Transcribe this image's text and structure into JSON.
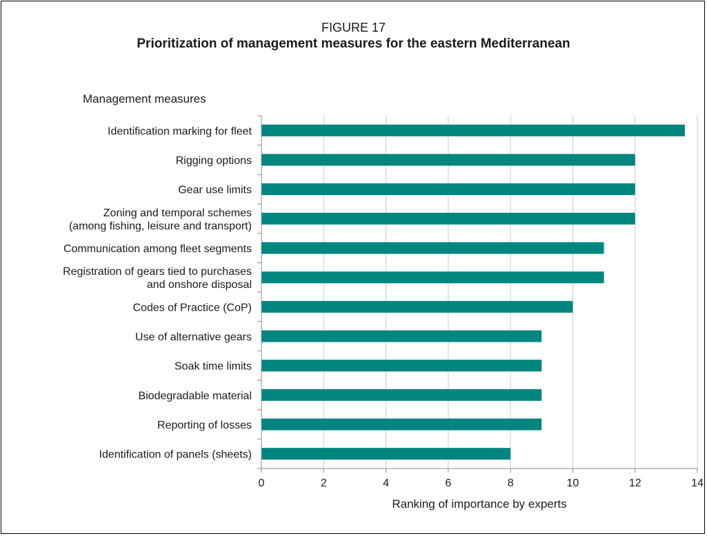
{
  "figure": {
    "label": "FIGURE 17",
    "title": "Prioritization of management measures for the eastern Mediterranean"
  },
  "chart_data": {
    "type": "bar",
    "orientation": "horizontal",
    "ylabel": "Management measures",
    "xlabel": "Ranking of importance by experts",
    "xlim": [
      0,
      14
    ],
    "xticks": [
      0,
      2,
      4,
      6,
      8,
      10,
      12,
      14
    ],
    "grid": "vertical",
    "bar_color": "#00857f",
    "categories": [
      [
        "Identification marking for fleet"
      ],
      [
        "Rigging options"
      ],
      [
        "Gear use limits"
      ],
      [
        "Zoning and temporal schemes",
        "(among fishing, leisure and transport)"
      ],
      [
        "Communication among fleet segments"
      ],
      [
        "Registration of gears tied to purchases",
        "and onshore disposal"
      ],
      [
        "Codes of Practice (CoP)"
      ],
      [
        "Use of alternative gears"
      ],
      [
        "Soak time limits"
      ],
      [
        "Biodegradable material"
      ],
      [
        "Reporting of losses"
      ],
      [
        "Identification of panels (sheets)"
      ]
    ],
    "values": [
      13.6,
      12,
      12,
      12,
      11,
      11,
      10,
      9,
      9,
      9,
      9,
      8
    ]
  }
}
